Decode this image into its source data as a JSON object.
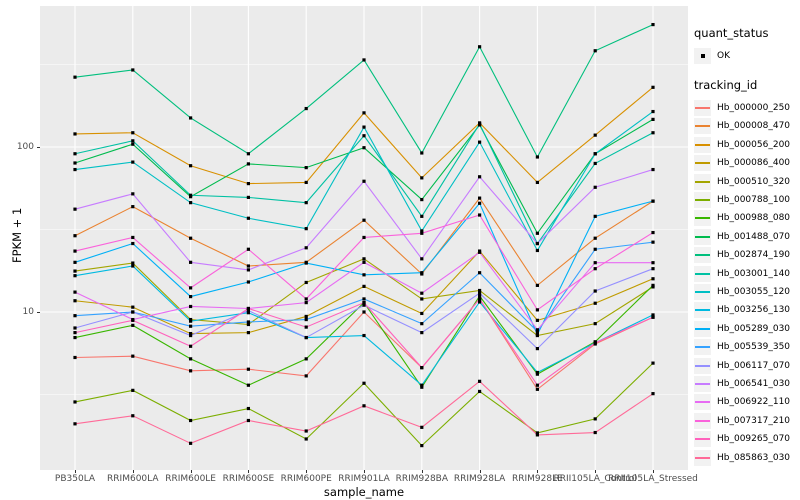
{
  "figure": {
    "background": "#FFFFFF",
    "panel_background": "#EBEBEB",
    "gridline_color": "#FFFFFF",
    "point_color": "#000000"
  },
  "legend": {
    "quant_status": {
      "title": "quant_status",
      "items": [
        {
          "label": "OK",
          "symbol": "black-square-point"
        }
      ]
    },
    "tracking_id": {
      "title": "tracking_id"
    }
  },
  "chart_data": {
    "type": "line",
    "title": "",
    "xlabel": "sample_name",
    "ylabel": "FPKM + 1",
    "yscale": "log10",
    "yticks": [
      10,
      100
    ],
    "y_minor_gridlines": [
      3.162,
      31.62,
      316.2
    ],
    "ylim": [
      1.4,
      620
    ],
    "legend_position": "right",
    "grid": true,
    "categories": [
      "PB350LA",
      "RRIM600LA",
      "RRIM600LE",
      "RRIM600SE",
      "RRIM600PE",
      "RRIM901LA",
      "RRIM928BA",
      "RRIM928LA",
      "RRIM928LE",
      "RRII105LA_Control",
      "RRII105LA_Stressed"
    ],
    "series": [
      {
        "name": "Hb_000000_250",
        "color": "#F8766D",
        "values": [
          5.3,
          5.4,
          4.4,
          4.5,
          4.1,
          10,
          4.6,
          12,
          3.4,
          6.4,
          9.3
        ]
      },
      {
        "name": "Hb_000008_470",
        "color": "#EA8331",
        "values": [
          29,
          43.5,
          28,
          19,
          20,
          36,
          17,
          49,
          14.5,
          28,
          47
        ]
      },
      {
        "name": "Hb_000056_200",
        "color": "#D89000",
        "values": [
          120,
          122,
          77,
          60,
          61,
          161,
          65,
          140,
          61,
          118,
          230
        ]
      },
      {
        "name": "Hb_000086_400",
        "color": "#C09B00",
        "values": [
          11.7,
          10.7,
          7.4,
          7.5,
          9.4,
          14.3,
          9.8,
          23.4,
          8.9,
          11.3,
          15.9
        ]
      },
      {
        "name": "Hb_000510_320",
        "color": "#A3A500",
        "values": [
          17.7,
          19.8,
          9.0,
          8.4,
          15.1,
          21,
          12,
          13.5,
          7.2,
          8.5,
          14.2
        ]
      },
      {
        "name": "Hb_000788_100",
        "color": "#7CAE00",
        "values": [
          2.85,
          3.35,
          2.2,
          2.6,
          1.7,
          3.7,
          1.55,
          3.3,
          1.85,
          2.25,
          4.9
        ]
      },
      {
        "name": "Hb_000988_080",
        "color": "#39B600",
        "values": [
          7.0,
          8.3,
          5.2,
          3.6,
          5.2,
          11.4,
          3.5,
          12.5,
          4.2,
          6.6,
          14.5
        ]
      },
      {
        "name": "Hb_001488_070",
        "color": "#00BB4E",
        "values": [
          80,
          104,
          50,
          79,
          75,
          99,
          48,
          136,
          30,
          91,
          147
        ]
      },
      {
        "name": "Hb_002874_190",
        "color": "#00BF7D",
        "values": [
          265,
          293,
          150,
          91,
          171,
          337,
          92,
          405,
          87,
          383,
          552
        ]
      },
      {
        "name": "Hb_003001_140",
        "color": "#00C1A3",
        "values": [
          91,
          109,
          51,
          49.5,
          46,
          117,
          38,
          138,
          26,
          79.5,
          122
        ]
      },
      {
        "name": "Hb_003055_120",
        "color": "#00BFC4",
        "values": [
          73,
          81,
          46,
          37,
          32,
          132,
          31,
          107,
          23.6,
          91,
          164
        ]
      },
      {
        "name": "Hb_003256_130",
        "color": "#00BAE0",
        "values": [
          16.6,
          19,
          8.8,
          9.9,
          7.0,
          7.2,
          3.6,
          11.5,
          4.3,
          6.5,
          9.6
        ]
      },
      {
        "name": "Hb_005289_030",
        "color": "#00B0F6",
        "values": [
          20,
          26,
          12.4,
          15.2,
          19.8,
          16.8,
          17.3,
          45.6,
          7.3,
          38,
          47
        ]
      },
      {
        "name": "Hb_005539_350",
        "color": "#35A2FF",
        "values": [
          9.5,
          10,
          8.2,
          8.7,
          9.0,
          12,
          8.5,
          17.3,
          7.6,
          24,
          26.5
        ]
      },
      {
        "name": "Hb_006117_070",
        "color": "#9590FF",
        "values": [
          8.0,
          10,
          7.2,
          10.2,
          7.0,
          11,
          7.5,
          13,
          6.0,
          13.4,
          18.3
        ]
      },
      {
        "name": "Hb_006541_030",
        "color": "#C77CFF",
        "values": [
          42,
          52,
          20,
          18,
          24.5,
          62,
          21,
          66,
          26,
          57,
          73
        ]
      },
      {
        "name": "Hb_006922_110",
        "color": "#E76BF3",
        "values": [
          13.2,
          9.0,
          10.8,
          10.5,
          11.4,
          20,
          13,
          23,
          7.8,
          19.9,
          19.9
        ]
      },
      {
        "name": "Hb_007317_210",
        "color": "#FA62DB",
        "values": [
          23.4,
          28.3,
          14,
          24,
          12,
          28.3,
          30,
          38.7,
          10.3,
          18.3,
          30.3
        ]
      },
      {
        "name": "Hb_009265_070",
        "color": "#FF62BC",
        "values": [
          7.5,
          8.9,
          6.2,
          10.5,
          8.1,
          11.4,
          4.6,
          12,
          3.6,
          6.5,
          9.3
        ]
      },
      {
        "name": "Hb_085863_030",
        "color": "#FF6A98",
        "values": [
          2.1,
          2.35,
          1.6,
          2.2,
          1.9,
          2.7,
          2.0,
          3.8,
          1.8,
          1.86,
          3.2
        ]
      }
    ]
  }
}
